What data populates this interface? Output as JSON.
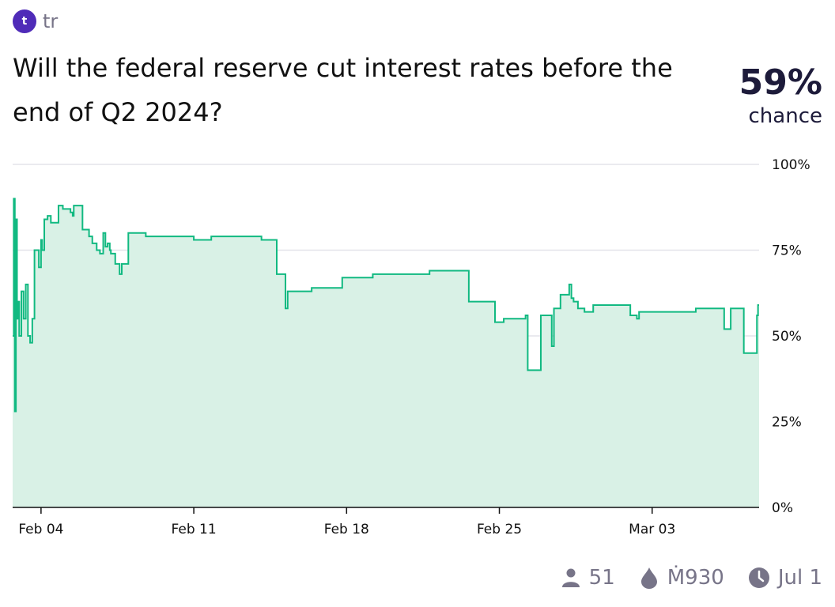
{
  "author": {
    "initial": "t",
    "name": "tr"
  },
  "question": "Will the federal reserve cut interest rates before the end of Q2 2024?",
  "probability": {
    "value": "59%",
    "label": "chance"
  },
  "footer": {
    "traders_icon": "person-icon",
    "traders": "51",
    "volume_icon": "droplet-icon",
    "volume": "Ṁ930",
    "close_icon": "clock-icon",
    "close_date": "Jul 1"
  },
  "colors": {
    "line": "#11b981",
    "fill": "#d9f1e6",
    "avatar": "#4f2bb8",
    "muted": "#777488"
  },
  "chart_data": {
    "type": "area",
    "title": "",
    "xlabel": "",
    "ylabel": "",
    "ylim": [
      0,
      100
    ],
    "yticks": [
      "0%",
      "25%",
      "50%",
      "75%",
      "100%"
    ],
    "ytick_values": [
      0,
      25,
      50,
      75,
      100
    ],
    "xticks": [
      "Feb 04",
      "Feb 11",
      "Feb 18",
      "Feb 25",
      "Mar 03"
    ],
    "xtick_values": [
      3.3,
      10.3,
      17.3,
      24.3,
      31.3
    ],
    "xlim": [
      2,
      36.2
    ],
    "grid": true,
    "series": [
      {
        "x": [
          2.0,
          2.05,
          2.1,
          2.15,
          2.2,
          2.25,
          2.3,
          2.4,
          2.5,
          2.6,
          2.7,
          2.8,
          2.9,
          3.0,
          3.1,
          3.2,
          3.3,
          3.35,
          3.45,
          3.6,
          3.75,
          4.1,
          4.3,
          4.5,
          4.65,
          4.75,
          4.8,
          5.2,
          5.5,
          5.65,
          5.85,
          6.0,
          6.15,
          6.25,
          6.35,
          6.45,
          6.5,
          6.7,
          6.9,
          7.0,
          7.3,
          7.7,
          8.1,
          9.0,
          10.3,
          11.1,
          11.3,
          13.4,
          14.1,
          14.5,
          14.6,
          14.9,
          15.7,
          17.1,
          18.5,
          21.1,
          22.9,
          23.2,
          24.1,
          24.5,
          25.5,
          25.6,
          26.2,
          26.7,
          26.8,
          27.1,
          27.5,
          27.6,
          27.7,
          27.9,
          28.2,
          28.6,
          29.0,
          29.1,
          30.3,
          30.6,
          30.7,
          31.0,
          32.3,
          33.3,
          33.7,
          34.6,
          34.9,
          35.2,
          35.5,
          36.1,
          36.15
        ],
        "y": [
          50,
          90,
          28,
          84,
          55,
          60,
          50,
          63,
          55,
          65,
          50,
          48,
          55,
          75,
          75,
          70,
          78,
          75,
          84,
          85,
          83,
          88,
          87,
          87,
          86,
          85,
          88,
          81,
          79,
          77,
          75,
          74,
          80,
          76,
          77,
          75,
          74,
          71,
          68,
          71,
          80,
          80,
          79,
          79,
          78,
          79,
          79,
          78,
          68,
          58,
          63,
          63,
          64,
          67,
          68,
          69,
          60,
          60,
          54,
          55,
          56,
          40,
          56,
          47,
          58,
          62,
          65,
          61,
          60,
          58,
          57,
          59,
          59,
          59,
          56,
          55,
          57,
          57,
          57,
          58,
          58,
          52,
          58,
          58,
          45,
          56,
          59
        ]
      }
    ]
  }
}
